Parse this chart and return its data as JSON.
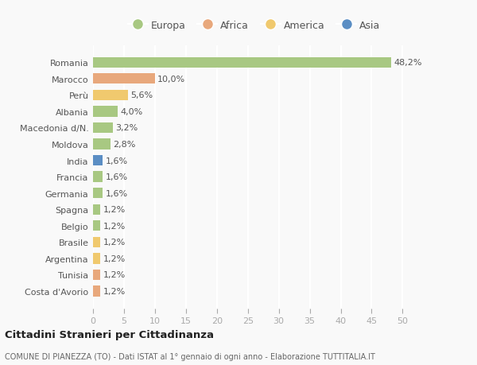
{
  "countries": [
    "Romania",
    "Marocco",
    "Perù",
    "Albania",
    "Macedonia d/N.",
    "Moldova",
    "India",
    "Francia",
    "Germania",
    "Spagna",
    "Belgio",
    "Brasile",
    "Argentina",
    "Tunisia",
    "Costa d'Avorio"
  ],
  "values": [
    48.2,
    10.0,
    5.6,
    4.0,
    3.2,
    2.8,
    1.6,
    1.6,
    1.6,
    1.2,
    1.2,
    1.2,
    1.2,
    1.2,
    1.2
  ],
  "labels": [
    "48,2%",
    "10,0%",
    "5,6%",
    "4,0%",
    "3,2%",
    "2,8%",
    "1,6%",
    "1,6%",
    "1,6%",
    "1,2%",
    "1,2%",
    "1,2%",
    "1,2%",
    "1,2%",
    "1,2%"
  ],
  "colors": [
    "#a8c882",
    "#e8a87c",
    "#f0c96e",
    "#a8c882",
    "#a8c882",
    "#a8c882",
    "#5b8ec4",
    "#a8c882",
    "#a8c882",
    "#a8c882",
    "#a8c882",
    "#f0c96e",
    "#f0c96e",
    "#e8a87c",
    "#e8a87c"
  ],
  "legend_labels": [
    "Europa",
    "Africa",
    "America",
    "Asia"
  ],
  "legend_colors": [
    "#a8c882",
    "#e8a87c",
    "#f0c96e",
    "#5b8ec4"
  ],
  "xlim": [
    0,
    52
  ],
  "xticks": [
    0,
    5,
    10,
    15,
    20,
    25,
    30,
    35,
    40,
    45,
    50
  ],
  "title": "Cittadini Stranieri per Cittadinanza",
  "subtitle": "COMUNE DI PIANEZZA (TO) - Dati ISTAT al 1° gennaio di ogni anno - Elaborazione TUTTITALIA.IT",
  "background_color": "#f9f9f9",
  "grid_color": "#ffffff",
  "bar_height": 0.65,
  "label_fontsize": 8,
  "tick_fontsize": 8,
  "ytick_fontsize": 8
}
